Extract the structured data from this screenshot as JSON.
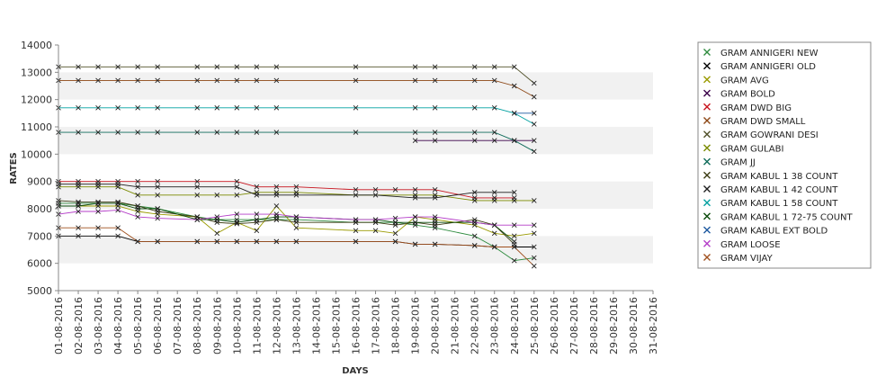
{
  "chart_data": {
    "type": "line",
    "title": "",
    "xlabel": "DAYS",
    "ylabel": "RATES",
    "ylim": [
      5000,
      14000
    ],
    "yticks": [
      5000,
      6000,
      7000,
      8000,
      9000,
      10000,
      11000,
      12000,
      13000,
      14000
    ],
    "categories": [
      "01-08-2016",
      "02-08-2016",
      "03-08-2016",
      "04-08-2016",
      "05-08-2016",
      "06-08-2016",
      "07-08-2016",
      "08-08-2016",
      "09-08-2016",
      "10-08-2016",
      "11-08-2016",
      "12-08-2016",
      "13-08-2016",
      "14-08-2016",
      "15-08-2016",
      "16-08-2016",
      "17-08-2016",
      "18-08-2016",
      "19-08-2016",
      "20-08-2016",
      "21-08-2016",
      "22-08-2016",
      "23-08-2016",
      "24-08-2016",
      "25-08-2016",
      "26-08-2016",
      "27-08-2016",
      "28-08-2016",
      "29-08-2016",
      "30-08-2016",
      "31-08-2016"
    ],
    "legend_position": "right",
    "grid": "alternating horizontal bands",
    "series": [
      {
        "name": "GRAM ANNIGERI NEW",
        "color": "#2e8b3e",
        "points": [
          [
            0,
            8200
          ],
          [
            1,
            8200
          ],
          [
            2,
            8200
          ],
          [
            3,
            8200
          ],
          [
            4,
            8100
          ],
          [
            5,
            8000
          ],
          [
            7,
            7700
          ],
          [
            8,
            7600
          ],
          [
            9,
            7600
          ],
          [
            10,
            7600
          ],
          [
            11,
            7600
          ],
          [
            12,
            7600
          ],
          [
            15,
            7500
          ],
          [
            16,
            7500
          ],
          [
            17,
            7500
          ],
          [
            18,
            7400
          ],
          [
            19,
            7300
          ],
          [
            21,
            7000
          ],
          [
            22,
            6600
          ],
          [
            23,
            6100
          ],
          [
            24,
            6200
          ]
        ]
      },
      {
        "name": "GRAM ANNIGERI OLD",
        "color": "#000000",
        "points": [
          [
            0,
            7000
          ],
          [
            1,
            7000
          ],
          [
            2,
            7000
          ],
          [
            3,
            7000
          ],
          [
            4,
            6800
          ],
          [
            5,
            6800
          ],
          [
            7,
            6800
          ],
          [
            8,
            6800
          ],
          [
            9,
            6800
          ],
          [
            10,
            6800
          ],
          [
            11,
            6800
          ],
          [
            12,
            6800
          ],
          [
            15,
            6800
          ],
          [
            17,
            6800
          ],
          [
            18,
            6700
          ],
          [
            19,
            6700
          ],
          [
            21,
            6650
          ],
          [
            22,
            6600
          ],
          [
            23,
            6600
          ],
          [
            24,
            6600
          ]
        ]
      },
      {
        "name": "GRAM AVG",
        "color": "#9a9a00",
        "points": [
          [
            0,
            8100
          ],
          [
            1,
            8100
          ],
          [
            2,
            8100
          ],
          [
            3,
            8100
          ],
          [
            4,
            7900
          ],
          [
            5,
            7800
          ],
          [
            7,
            7700
          ],
          [
            8,
            7100
          ],
          [
            9,
            7500
          ],
          [
            10,
            7200
          ],
          [
            11,
            8100
          ],
          [
            12,
            7300
          ],
          [
            15,
            7200
          ],
          [
            16,
            7200
          ],
          [
            17,
            7100
          ],
          [
            18,
            7700
          ],
          [
            19,
            7600
          ],
          [
            21,
            7400
          ],
          [
            22,
            7100
          ],
          [
            23,
            7000
          ],
          [
            24,
            7100
          ]
        ]
      },
      {
        "name": "GRAM BOLD",
        "color": "#3a0048",
        "points": [
          [
            18,
            10500
          ],
          [
            19,
            10500
          ],
          [
            21,
            10500
          ],
          [
            22,
            10500
          ],
          [
            23,
            10500
          ],
          [
            24,
            10500
          ]
        ]
      },
      {
        "name": "GRAM DWD BIG",
        "color": "#c8141e",
        "points": [
          [
            0,
            9000
          ],
          [
            1,
            9000
          ],
          [
            2,
            9000
          ],
          [
            3,
            9000
          ],
          [
            4,
            9000
          ],
          [
            5,
            9000
          ],
          [
            7,
            9000
          ],
          [
            9,
            9000
          ],
          [
            10,
            8800
          ],
          [
            11,
            8800
          ],
          [
            12,
            8800
          ],
          [
            15,
            8700
          ],
          [
            16,
            8700
          ],
          [
            17,
            8700
          ],
          [
            18,
            8700
          ],
          [
            19,
            8700
          ],
          [
            21,
            8400
          ],
          [
            22,
            8400
          ],
          [
            23,
            8400
          ]
        ]
      },
      {
        "name": "GRAM DWD SMALL",
        "color": "#8b4513",
        "points": [
          [
            0,
            12700
          ],
          [
            1,
            12700
          ],
          [
            2,
            12700
          ],
          [
            3,
            12700
          ],
          [
            4,
            12700
          ],
          [
            5,
            12700
          ],
          [
            7,
            12700
          ],
          [
            8,
            12700
          ],
          [
            9,
            12700
          ],
          [
            10,
            12700
          ],
          [
            11,
            12700
          ],
          [
            15,
            12700
          ],
          [
            18,
            12700
          ],
          [
            19,
            12700
          ],
          [
            21,
            12700
          ],
          [
            22,
            12700
          ],
          [
            23,
            12500
          ],
          [
            24,
            12100
          ]
        ]
      },
      {
        "name": "GRAM GOWRANI DESI",
        "color": "#505028",
        "points": [
          [
            0,
            13200
          ],
          [
            1,
            13200
          ],
          [
            2,
            13200
          ],
          [
            3,
            13200
          ],
          [
            4,
            13200
          ],
          [
            5,
            13200
          ],
          [
            7,
            13200
          ],
          [
            8,
            13200
          ],
          [
            9,
            13200
          ],
          [
            10,
            13200
          ],
          [
            11,
            13200
          ],
          [
            15,
            13200
          ],
          [
            18,
            13200
          ],
          [
            19,
            13200
          ],
          [
            21,
            13200
          ],
          [
            22,
            13200
          ],
          [
            23,
            13200
          ],
          [
            24,
            12600
          ]
        ]
      },
      {
        "name": "GRAM GULABI",
        "color": "#7a8a00",
        "points": [
          [
            0,
            8800
          ],
          [
            1,
            8800
          ],
          [
            2,
            8800
          ],
          [
            3,
            8800
          ],
          [
            4,
            8500
          ],
          [
            5,
            8500
          ],
          [
            7,
            8500
          ],
          [
            8,
            8500
          ],
          [
            9,
            8500
          ],
          [
            10,
            8600
          ],
          [
            11,
            8600
          ],
          [
            12,
            8600
          ],
          [
            15,
            8500
          ],
          [
            18,
            8500
          ],
          [
            19,
            8500
          ],
          [
            21,
            8300
          ],
          [
            22,
            8300
          ],
          [
            23,
            8300
          ],
          [
            24,
            8300
          ]
        ]
      },
      {
        "name": "GRAM JJ",
        "color": "#0f6b5a",
        "points": [
          [
            0,
            10800
          ],
          [
            1,
            10800
          ],
          [
            2,
            10800
          ],
          [
            3,
            10800
          ],
          [
            4,
            10800
          ],
          [
            5,
            10800
          ],
          [
            7,
            10800
          ],
          [
            8,
            10800
          ],
          [
            9,
            10800
          ],
          [
            10,
            10800
          ],
          [
            11,
            10800
          ],
          [
            15,
            10800
          ],
          [
            18,
            10800
          ],
          [
            19,
            10800
          ],
          [
            21,
            10800
          ],
          [
            22,
            10800
          ],
          [
            23,
            10500
          ],
          [
            24,
            10100
          ]
        ]
      },
      {
        "name": "GRAM KABUL 1 38 COUNT",
        "color": "#3c3c14",
        "points": [
          [
            0,
            8300
          ],
          [
            1,
            8250
          ],
          [
            2,
            8250
          ],
          [
            3,
            8250
          ],
          [
            4,
            8100
          ],
          [
            5,
            7900
          ],
          [
            7,
            7700
          ],
          [
            8,
            7500
          ],
          [
            9,
            7450
          ],
          [
            10,
            7500
          ],
          [
            11,
            7600
          ],
          [
            12,
            7500
          ],
          [
            15,
            7500
          ],
          [
            16,
            7500
          ],
          [
            17,
            7400
          ],
          [
            18,
            7500
          ],
          [
            19,
            7400
          ],
          [
            21,
            7600
          ],
          [
            22,
            7400
          ],
          [
            23,
            6700
          ]
        ]
      },
      {
        "name": "GRAM KABUL 1 42 COUNT",
        "color": "#1e1e1e",
        "points": [
          [
            0,
            8900
          ],
          [
            1,
            8900
          ],
          [
            2,
            8900
          ],
          [
            3,
            8900
          ],
          [
            4,
            8800
          ],
          [
            5,
            8800
          ],
          [
            7,
            8800
          ],
          [
            9,
            8800
          ],
          [
            10,
            8500
          ],
          [
            11,
            8500
          ],
          [
            12,
            8500
          ],
          [
            16,
            8500
          ],
          [
            18,
            8400
          ],
          [
            19,
            8400
          ],
          [
            21,
            8600
          ],
          [
            22,
            8600
          ],
          [
            23,
            8600
          ]
        ]
      },
      {
        "name": "GRAM KABUL 1 58 COUNT",
        "color": "#00a0a0",
        "points": [
          [
            0,
            11700
          ],
          [
            1,
            11700
          ],
          [
            2,
            11700
          ],
          [
            3,
            11700
          ],
          [
            4,
            11700
          ],
          [
            5,
            11700
          ],
          [
            7,
            11700
          ],
          [
            8,
            11700
          ],
          [
            9,
            11700
          ],
          [
            10,
            11700
          ],
          [
            11,
            11700
          ],
          [
            15,
            11700
          ],
          [
            18,
            11700
          ],
          [
            19,
            11700
          ],
          [
            21,
            11700
          ],
          [
            22,
            11700
          ],
          [
            23,
            11500
          ],
          [
            24,
            11100
          ]
        ]
      },
      {
        "name": "GRAM KABUL 1 72-75 COUNT",
        "color": "#0a4a0a",
        "points": [
          [
            0,
            8100
          ],
          [
            1,
            8100
          ],
          [
            2,
            8200
          ],
          [
            3,
            8200
          ],
          [
            4,
            8000
          ],
          [
            5,
            8000
          ],
          [
            7,
            7600
          ],
          [
            8,
            7600
          ],
          [
            9,
            7500
          ],
          [
            10,
            7600
          ],
          [
            11,
            7700
          ],
          [
            12,
            7700
          ],
          [
            15,
            7600
          ],
          [
            16,
            7600
          ],
          [
            17,
            7500
          ],
          [
            18,
            7500
          ],
          [
            19,
            7500
          ],
          [
            21,
            7500
          ],
          [
            22,
            7400
          ],
          [
            23,
            6800
          ]
        ]
      },
      {
        "name": "GRAM KABUL EXT BOLD",
        "color": "#1e5aa0",
        "points": [
          [
            23,
            11500
          ],
          [
            24,
            11500
          ]
        ]
      },
      {
        "name": "GRAM LOOSE",
        "color": "#b43cc8",
        "points": [
          [
            0,
            7800
          ],
          [
            1,
            7900
          ],
          [
            2,
            7900
          ],
          [
            3,
            7950
          ],
          [
            4,
            7700
          ],
          [
            5,
            7650
          ],
          [
            7,
            7600
          ],
          [
            8,
            7700
          ],
          [
            9,
            7800
          ],
          [
            10,
            7800
          ],
          [
            11,
            7800
          ],
          [
            12,
            7700
          ],
          [
            15,
            7600
          ],
          [
            16,
            7600
          ],
          [
            17,
            7650
          ],
          [
            18,
            7700
          ],
          [
            19,
            7700
          ],
          [
            21,
            7500
          ],
          [
            22,
            7400
          ],
          [
            23,
            7400
          ],
          [
            24,
            7400
          ]
        ]
      },
      {
        "name": "GRAM VIJAY",
        "color": "#a0501e",
        "points": [
          [
            0,
            7300
          ],
          [
            1,
            7300
          ],
          [
            2,
            7300
          ],
          [
            3,
            7300
          ],
          [
            4,
            6800
          ],
          [
            5,
            6800
          ],
          [
            7,
            6800
          ],
          [
            8,
            6800
          ],
          [
            9,
            6800
          ],
          [
            10,
            6800
          ],
          [
            11,
            6800
          ],
          [
            12,
            6800
          ],
          [
            15,
            6800
          ],
          [
            17,
            6800
          ],
          [
            18,
            6700
          ],
          [
            19,
            6700
          ],
          [
            21,
            6650
          ],
          [
            22,
            6600
          ],
          [
            23,
            6600
          ],
          [
            24,
            5900
          ]
        ]
      }
    ]
  }
}
